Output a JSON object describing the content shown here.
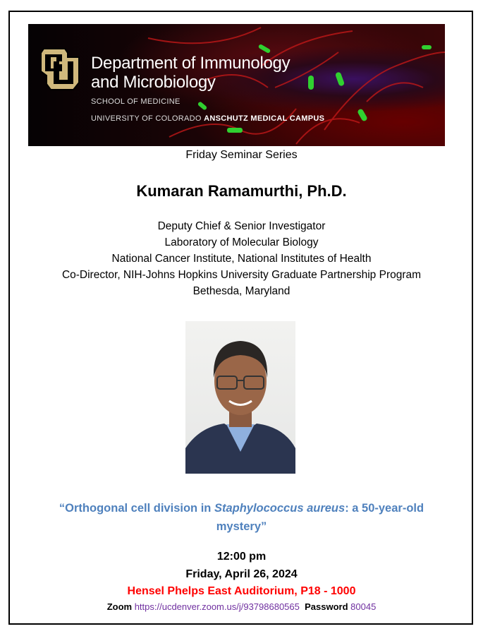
{
  "banner": {
    "dept_line1": "Department of Immunology",
    "dept_line2": "and Microbiology",
    "school": "SCHOOL OF MEDICINE",
    "university": "UNIVERSITY OF COLORADO",
    "campus": "ANSCHUTZ MEDICAL CAMPUS",
    "logo_text": "CU"
  },
  "series": "Friday Seminar Series",
  "speaker": {
    "name": "Kumaran Ramamurthi, Ph.D.",
    "affiliations": [
      "Deputy Chief & Senior Investigator",
      "Laboratory of Molecular Biology",
      "National Cancer Institute, National Institutes of Health",
      "Co-Director, NIH-Johns Hopkins University Graduate Partnership Program",
      "Bethesda, Maryland"
    ]
  },
  "talk": {
    "open_quote": "“Orthogonal cell division in ",
    "organism": "Staphylococcus aureus",
    "rest_line1": ": a 50-year-old",
    "line2": "mystery”"
  },
  "event": {
    "time": "12:00 pm",
    "date": "Friday, April 26, 2024",
    "location": "Hensel Phelps East Auditorium, P18 - 1000",
    "zoom_label": "Zoom",
    "zoom_url": "https://ucdenver.zoom.us/j/93798680565",
    "password_label": "Password",
    "password": "80045"
  },
  "colors": {
    "title_blue": "#4f81bd",
    "location_red": "#ff0000",
    "link_purple": "#7030a0"
  }
}
